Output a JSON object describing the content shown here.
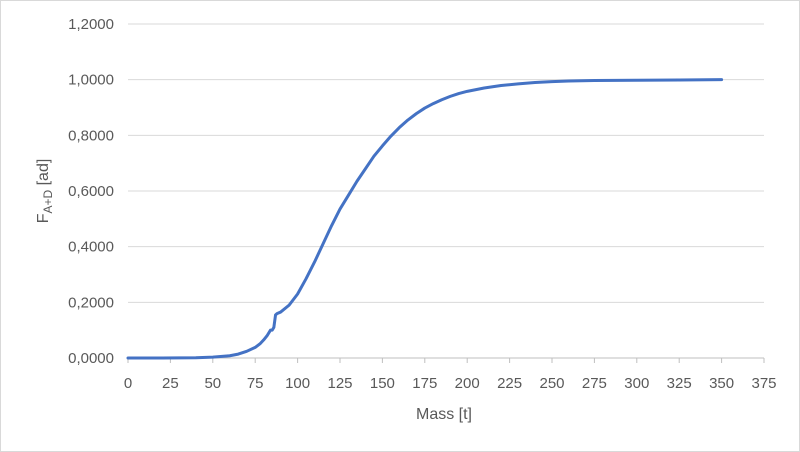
{
  "chart_data": {
    "type": "line",
    "xlabel": "Mass [t]",
    "ylabel_main": "F",
    "ylabel_sub": "A+D",
    "ylabel_unit": " [ad]",
    "xlim": [
      0,
      375
    ],
    "ylim": [
      0,
      1.2
    ],
    "xticks": [
      0,
      25,
      50,
      75,
      100,
      125,
      150,
      175,
      200,
      225,
      250,
      275,
      300,
      325,
      350,
      375
    ],
    "xtick_labels": [
      "0",
      "25",
      "50",
      "75",
      "100",
      "125",
      "150",
      "175",
      "200",
      "225",
      "250",
      "275",
      "300",
      "325",
      "350",
      "375"
    ],
    "yticks": [
      0,
      0.2,
      0.4,
      0.6,
      0.8,
      1.0,
      1.2
    ],
    "ytick_labels": [
      "0,0000",
      "0,2000",
      "0,4000",
      "0,6000",
      "0,8000",
      "1,0000",
      "1,2000"
    ],
    "grid": true,
    "series": [
      {
        "color": "#4472c4",
        "x": [
          0,
          20,
          40,
          50,
          60,
          65,
          70,
          75,
          78,
          80,
          82,
          84,
          85,
          86,
          87,
          88,
          90,
          95,
          100,
          105,
          110,
          115,
          120,
          125,
          130,
          135,
          140,
          145,
          150,
          155,
          160,
          165,
          170,
          175,
          180,
          185,
          190,
          195,
          200,
          210,
          220,
          230,
          240,
          250,
          260,
          275,
          300,
          325,
          350
        ],
        "y": [
          0.0,
          0.0,
          0.001,
          0.003,
          0.008,
          0.014,
          0.024,
          0.038,
          0.052,
          0.065,
          0.08,
          0.1,
          0.1,
          0.11,
          0.155,
          0.16,
          0.165,
          0.19,
          0.23,
          0.285,
          0.345,
          0.41,
          0.475,
          0.535,
          0.585,
          0.635,
          0.68,
          0.725,
          0.762,
          0.797,
          0.828,
          0.855,
          0.878,
          0.898,
          0.914,
          0.928,
          0.94,
          0.95,
          0.958,
          0.97,
          0.979,
          0.985,
          0.99,
          0.993,
          0.995,
          0.997,
          0.998,
          0.999,
          1.0
        ]
      }
    ]
  }
}
